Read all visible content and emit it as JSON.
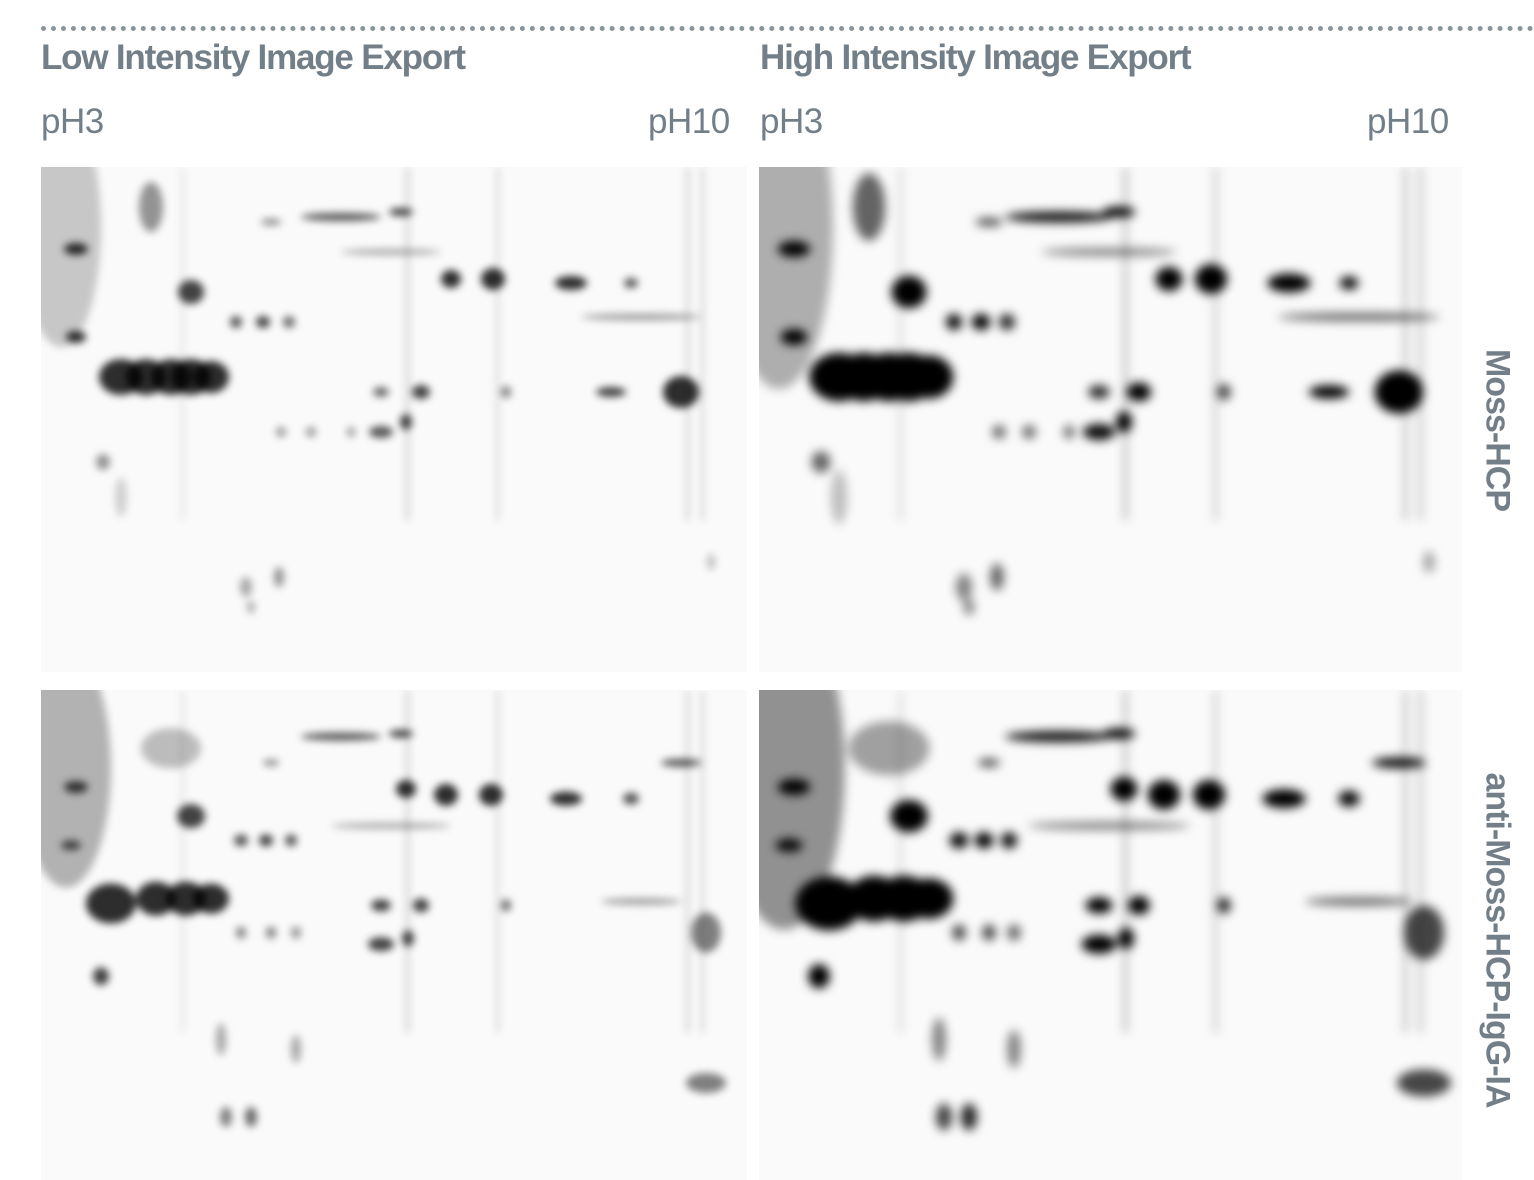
{
  "panels": [
    {
      "title": "Low Intensity Image Export",
      "ph_start": "pH3",
      "ph_end": "pH10"
    },
    {
      "title": "High Intensity Image Export",
      "ph_start": "pH3",
      "ph_end": "pH10"
    }
  ],
  "rows": [
    {
      "label": "Moss-HCP"
    },
    {
      "label": "anti-Moss-HCP-IgG-IA"
    }
  ]
}
